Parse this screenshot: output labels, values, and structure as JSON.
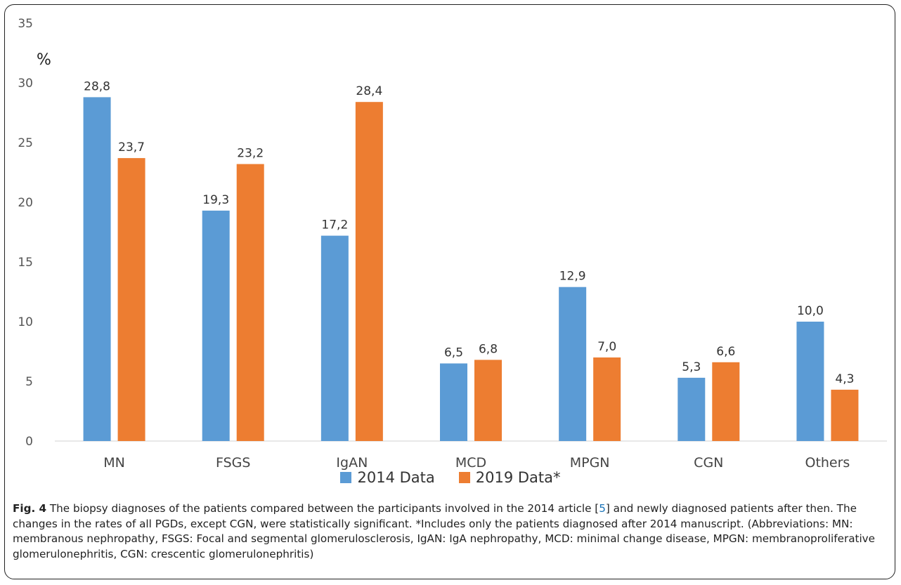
{
  "chart_data": {
    "type": "bar",
    "ylabel": "%",
    "ylim": [
      0,
      35
    ],
    "yticks": [
      "0",
      "5",
      "10",
      "15",
      "20",
      "25",
      "30",
      "35"
    ],
    "categories": [
      "MN",
      "FSGS",
      "IgAN",
      "MCD",
      "MPGN",
      "CGN",
      "Others"
    ],
    "series": [
      {
        "name": "2014 Data",
        "color": "#5b9bd5",
        "values": [
          28.8,
          19.3,
          17.2,
          6.5,
          12.9,
          5.3,
          10.0
        ],
        "labels": [
          "28,8",
          "19,3",
          "17,2",
          "6,5",
          "12,9",
          "5,3",
          "10,0"
        ]
      },
      {
        "name": "2019 Data*",
        "color": "#ed7d31",
        "values": [
          23.7,
          23.2,
          28.4,
          6.8,
          7.0,
          6.6,
          4.3
        ],
        "labels": [
          "23,7",
          "23,2",
          "28,4",
          "6,8",
          "7,0",
          "6,6",
          "4,3"
        ]
      }
    ],
    "grid": false,
    "legend": "bottom"
  },
  "caption": {
    "fig_label": "Fig. 4",
    "text_before_ref": " The biopsy diagnoses of the patients compared between the participants involved in the 2014 article [",
    "ref": "5",
    "text_after_ref": "] and newly diagnosed patients after then. The changes in the rates of all PGDs, except CGN, were statistically significant. *Includes only the patients diagnosed after 2014 manuscript. (Abbreviations: MN: membranous nephropathy, FSGS: Focal and segmental glomerulosclerosis, IgAN: IgA nephropathy, MCD: minimal change disease, MPGN: membranoproliferative glomerulonephritis, CGN: crescentic glomerulonephritis)"
  }
}
